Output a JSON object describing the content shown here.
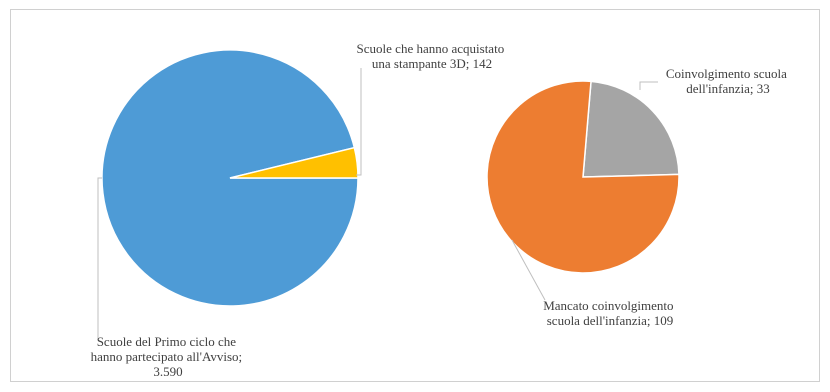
{
  "chart_data": [
    {
      "type": "pie",
      "title": "",
      "slices": [
        {
          "label_lines": [
            "Scuole del Primo ciclo che",
            "hanno partecipato all'Avviso;",
            "3.590"
          ],
          "value": 3590,
          "color": "#4E9BD6"
        },
        {
          "label_lines": [
            "Scuole che hanno acquistato",
            "una stampante 3D; 142"
          ],
          "value": 142,
          "color": "#FFC000"
        }
      ]
    },
    {
      "type": "pie",
      "title": "",
      "slices": [
        {
          "label_lines": [
            "Coinvolgimento  scuola",
            "dell'infanzia;  33"
          ],
          "value": 33,
          "color": "#A5A5A5"
        },
        {
          "label_lines": [
            "Mancato coinvolgimento",
            "scuola dell'infanzia;  109"
          ],
          "value": 109,
          "color": "#ED7D31"
        }
      ]
    }
  ]
}
